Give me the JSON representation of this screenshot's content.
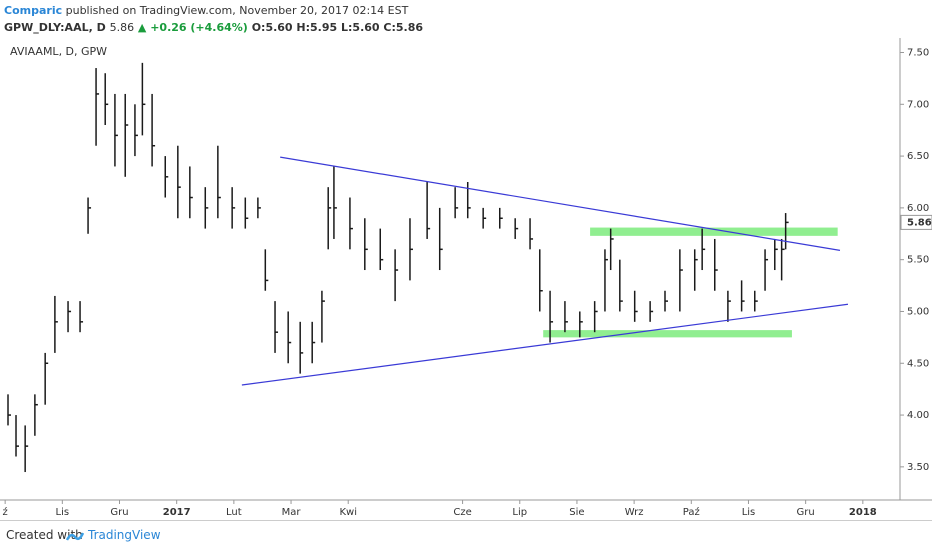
{
  "header": {
    "author": "Comparic",
    "published": "published on TradingView.com, November 20, 2017 02:14 EST",
    "symbol": "GPW_DLY:AAL, D",
    "last": "5.86",
    "change": "▲ +0.26 (+4.64%)",
    "open": "O:5.60",
    "high": "H:5.95",
    "low": "L:5.60",
    "close": "C:5.86"
  },
  "chart_data": {
    "type": "ohlc",
    "title": "AVIAAML, D, GPW",
    "color": "#1a1a1a",
    "x": [
      0.05,
      0.19,
      0.35,
      0.52,
      0.7,
      0.87,
      1.1,
      1.31,
      1.45,
      1.59,
      1.75,
      1.92,
      2.1,
      2.27,
      2.4,
      2.57,
      2.8,
      3.02,
      3.23,
      3.5,
      3.72,
      3.97,
      4.2,
      4.42,
      4.55,
      4.72,
      4.95,
      5.16,
      5.37,
      5.54,
      5.65,
      5.75,
      6.03,
      6.29,
      6.56,
      6.82,
      7.08,
      7.38,
      7.6,
      7.87,
      8.09,
      8.36,
      8.65,
      8.92,
      9.18,
      9.35,
      9.53,
      9.79,
      10.05,
      10.31,
      10.49,
      10.59,
      10.75,
      11.01,
      11.28,
      11.54,
      11.8,
      12.06,
      12.19,
      12.41,
      12.64,
      12.88,
      13.11,
      13.29,
      13.46,
      13.58,
      13.65
    ],
    "high": [
      4.2,
      4.0,
      3.9,
      4.2,
      4.6,
      5.15,
      5.1,
      5.1,
      6.1,
      7.35,
      7.3,
      7.1,
      7.1,
      7.0,
      7.4,
      7.1,
      6.5,
      6.6,
      6.4,
      6.2,
      6.6,
      6.2,
      6.1,
      6.1,
      5.6,
      5.1,
      5.0,
      4.9,
      4.9,
      5.2,
      6.2,
      6.4,
      6.1,
      5.9,
      5.8,
      5.6,
      5.9,
      6.25,
      6.0,
      6.2,
      6.25,
      6.0,
      6.0,
      5.9,
      5.9,
      5.6,
      5.2,
      5.1,
      5.0,
      5.1,
      5.6,
      5.8,
      5.5,
      5.2,
      5.1,
      5.2,
      5.6,
      5.6,
      5.8,
      5.7,
      5.2,
      5.3,
      5.2,
      5.6,
      5.7,
      5.7,
      5.95
    ],
    "low": [
      3.9,
      3.6,
      3.45,
      3.8,
      4.1,
      4.6,
      4.8,
      4.8,
      5.75,
      6.6,
      6.8,
      6.4,
      6.3,
      6.5,
      6.7,
      6.4,
      6.1,
      5.9,
      5.9,
      5.8,
      5.9,
      5.8,
      5.8,
      5.9,
      5.2,
      4.6,
      4.5,
      4.4,
      4.5,
      4.7,
      5.6,
      5.7,
      5.6,
      5.4,
      5.4,
      5.1,
      5.3,
      5.7,
      5.4,
      5.9,
      5.9,
      5.8,
      5.8,
      5.7,
      5.6,
      5.0,
      4.7,
      4.8,
      4.75,
      4.8,
      5.0,
      5.4,
      5.0,
      4.9,
      4.9,
      5.0,
      5.0,
      5.2,
      5.4,
      5.2,
      4.9,
      5.0,
      5.0,
      5.2,
      5.4,
      5.3,
      5.6
    ],
    "close": [
      4.0,
      3.7,
      3.7,
      4.1,
      4.5,
      4.9,
      5.0,
      4.9,
      6.0,
      7.1,
      7.0,
      6.7,
      6.8,
      6.7,
      7.0,
      6.6,
      6.3,
      6.2,
      6.1,
      6.0,
      6.1,
      6.0,
      5.9,
      6.0,
      5.3,
      4.8,
      4.7,
      4.6,
      4.7,
      5.1,
      6.0,
      6.0,
      5.8,
      5.6,
      5.5,
      5.4,
      5.6,
      5.8,
      5.6,
      6.0,
      6.0,
      5.9,
      5.9,
      5.8,
      5.7,
      5.2,
      4.9,
      4.9,
      4.9,
      5.0,
      5.5,
      5.7,
      5.1,
      5.0,
      5.0,
      5.1,
      5.4,
      5.5,
      5.6,
      5.4,
      5.1,
      5.1,
      5.1,
      5.5,
      5.6,
      5.6,
      5.86
    ],
    "xlim": [
      -0.09,
      15.65
    ],
    "xticks": [
      {
        "value": 0,
        "label": "ź"
      },
      {
        "value": 1,
        "label": "Lis"
      },
      {
        "value": 2,
        "label": "Gru"
      },
      {
        "value": 3,
        "label": "2017"
      },
      {
        "value": 4,
        "label": "Lut"
      },
      {
        "value": 5,
        "label": "Mar"
      },
      {
        "value": 6,
        "label": "Kwi"
      },
      {
        "value": 8,
        "label": "Cze"
      },
      {
        "value": 9,
        "label": "Lip"
      },
      {
        "value": 10,
        "label": "Sie"
      },
      {
        "value": 11,
        "label": "Wrz"
      },
      {
        "value": 12,
        "label": "Paź"
      },
      {
        "value": 13,
        "label": "Lis"
      },
      {
        "value": 14,
        "label": "Gru"
      },
      {
        "value": 15,
        "label": "2018"
      }
    ],
    "ylim": [
      3.18,
      7.64
    ],
    "yticks": [
      {
        "value": 3.5,
        "label": "3.50"
      },
      {
        "value": 4,
        "label": "4.00"
      },
      {
        "value": 4.5,
        "label": "4.50"
      },
      {
        "value": 5,
        "label": "5.00"
      },
      {
        "value": 5.5,
        "label": "5.50"
      },
      {
        "value": 6,
        "label": "6.00"
      },
      {
        "value": 6.5,
        "label": "6.50"
      },
      {
        "value": 7,
        "label": "7.00"
      },
      {
        "value": 7.5,
        "label": "7.50"
      }
    ],
    "last_price": {
      "value": 5.86,
      "label": "5.86"
    },
    "trendlines": [
      {
        "x": [
          4.81,
          14.6
        ],
        "y": [
          6.49,
          5.59
        ],
        "color": "#3a3ad6"
      },
      {
        "x": [
          4.14,
          14.74
        ],
        "y": [
          4.29,
          5.07
        ],
        "color": "#3a3ad6"
      }
    ],
    "zones": [
      {
        "x": [
          10.23,
          14.56
        ],
        "y": [
          5.73,
          5.81
        ],
        "color": "#90ee90"
      },
      {
        "x": [
          9.41,
          13.76
        ],
        "y": [
          4.75,
          4.82
        ],
        "color": "#90ee90"
      }
    ]
  },
  "footer": {
    "created": "Created with",
    "brand": "TradingView"
  }
}
